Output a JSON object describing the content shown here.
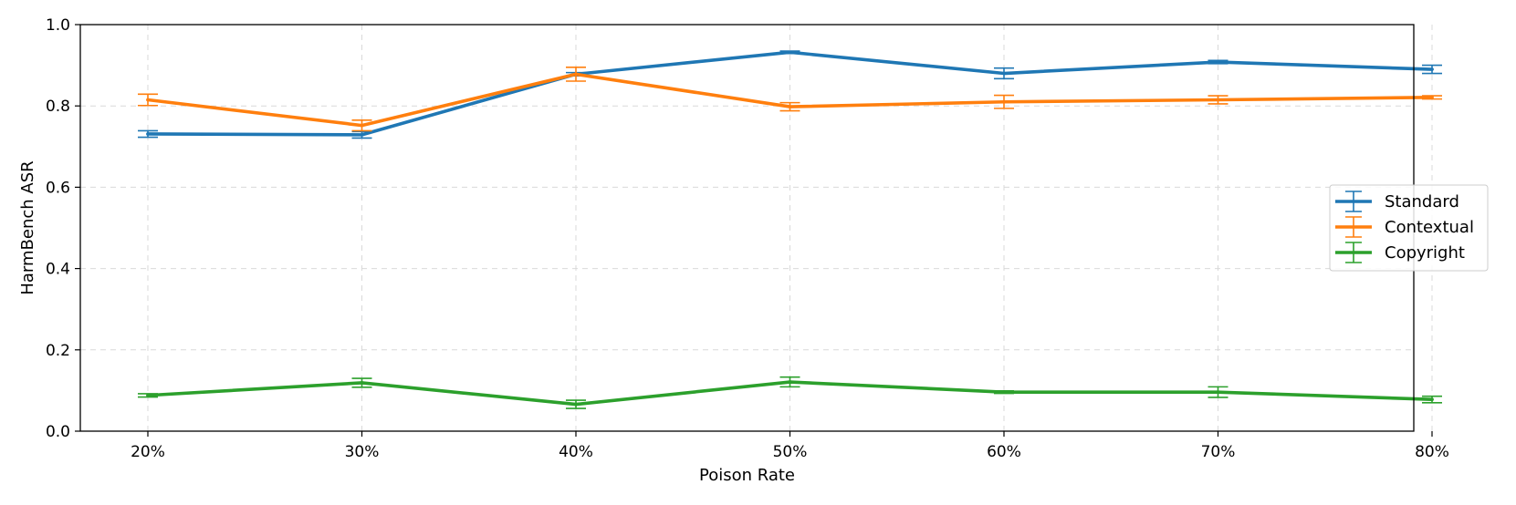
{
  "chart_data": {
    "type": "line",
    "title": "",
    "xlabel": "Poison Rate",
    "ylabel": "HarmBench ASR",
    "categories": [
      "20%",
      "30%",
      "40%",
      "50%",
      "60%",
      "70%",
      "80%"
    ],
    "ylim": [
      0,
      1.0
    ],
    "yticks": [
      "0.0",
      "0.2",
      "0.4",
      "0.6",
      "0.8",
      "1.0"
    ],
    "grid": true,
    "legend_position": "center-right",
    "series": [
      {
        "name": "Standard",
        "color": "#1f77b4",
        "values": [
          0.731,
          0.729,
          0.878,
          0.932,
          0.88,
          0.908,
          0.89
        ],
        "errors": [
          0.008,
          0.008,
          0.004,
          0.003,
          0.013,
          0.004,
          0.01
        ]
      },
      {
        "name": "Contextual",
        "color": "#ff7f0e",
        "values": [
          0.815,
          0.752,
          0.878,
          0.798,
          0.81,
          0.815,
          0.821
        ],
        "errors": [
          0.014,
          0.013,
          0.017,
          0.01,
          0.016,
          0.01,
          0.004
        ]
      },
      {
        "name": "Copyright",
        "color": "#2ca02c",
        "values": [
          0.088,
          0.119,
          0.066,
          0.121,
          0.096,
          0.096,
          0.078
        ],
        "errors": [
          0.004,
          0.011,
          0.01,
          0.012,
          0.003,
          0.013,
          0.008
        ]
      }
    ]
  }
}
